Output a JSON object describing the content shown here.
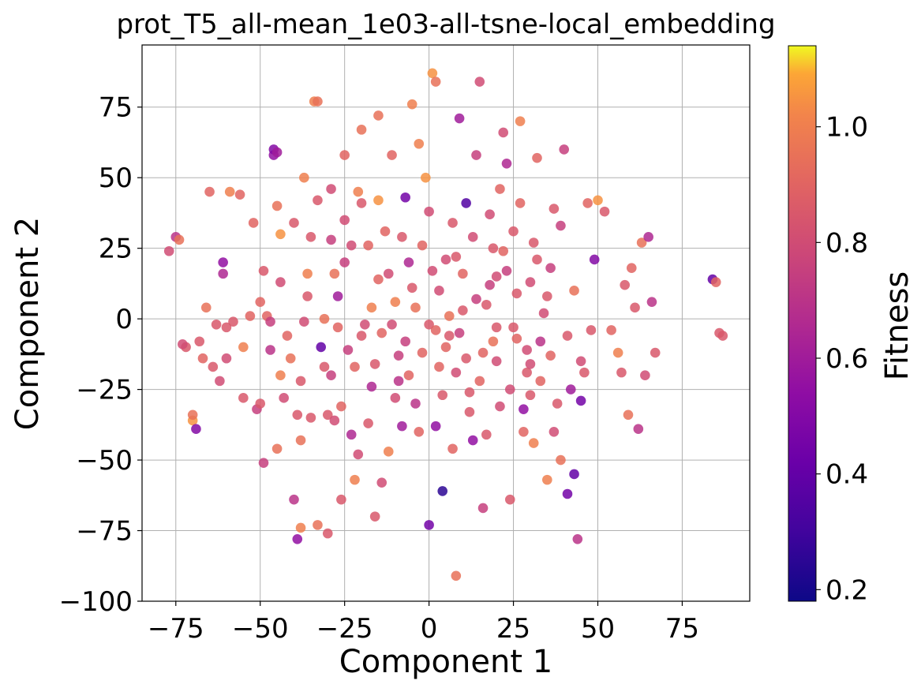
{
  "chart_data": {
    "type": "scatter",
    "title": "prot_T5_all-mean_1e03-all-tsne-local_embedding",
    "xlabel": "Component 1",
    "ylabel": "Component 2",
    "xlim": [
      -85,
      95
    ],
    "ylim": [
      -100,
      97
    ],
    "xticks": [
      -75,
      -50,
      -25,
      0,
      25,
      50,
      75
    ],
    "yticks": [
      -100,
      -75,
      -50,
      -25,
      0,
      25,
      50,
      75
    ],
    "xtick_labels": [
      "−75",
      "−50",
      "−25",
      "0",
      "25",
      "50",
      "75"
    ],
    "ytick_labels": [
      "−100",
      "−75",
      "−50",
      "−25",
      "0",
      "25",
      "50",
      "75"
    ],
    "grid": true,
    "colorbar": {
      "label": "Fitness",
      "colormap": "plasma",
      "range": [
        0.18,
        1.14
      ],
      "ticks": [
        0.2,
        0.4,
        0.6,
        0.8,
        1.0
      ],
      "tick_labels": [
        "0.2",
        "0.4",
        "0.6",
        "0.8",
        "1.0"
      ]
    },
    "points": [
      [
        -77,
        24,
        0.8
      ],
      [
        -75,
        29,
        0.7
      ],
      [
        -74,
        28,
        0.95
      ],
      [
        -72,
        -10,
        0.85
      ],
      [
        -70,
        -36,
        1.05
      ],
      [
        -69,
        -39,
        0.5
      ],
      [
        -70,
        -34,
        0.95
      ],
      [
        -68,
        -8,
        0.85
      ],
      [
        -67,
        -14,
        0.9
      ],
      [
        -66,
        4,
        0.95
      ],
      [
        -65,
        45,
        0.9
      ],
      [
        -64,
        -17,
        0.85
      ],
      [
        -62,
        -22,
        0.8
      ],
      [
        -61,
        16,
        0.65
      ],
      [
        -61,
        20,
        0.55
      ],
      [
        -60,
        -3,
        0.85
      ],
      [
        -59,
        45,
        1.0
      ],
      [
        -58,
        -1,
        0.85
      ],
      [
        -56,
        44,
        0.9
      ],
      [
        -55,
        -10,
        1.0
      ],
      [
        -52,
        34,
        0.9
      ],
      [
        -51,
        -32,
        0.75
      ],
      [
        -50,
        -30,
        0.85
      ],
      [
        -49,
        17,
        0.85
      ],
      [
        -49,
        -51,
        0.75
      ],
      [
        -48,
        1,
        0.9
      ],
      [
        -47,
        -11,
        0.7
      ],
      [
        -46,
        58,
        0.55
      ],
      [
        -46,
        60,
        0.5
      ],
      [
        -45,
        59,
        0.6
      ],
      [
        -45,
        40,
        0.95
      ],
      [
        -44,
        30,
        1.05
      ],
      [
        -44,
        -20,
        1.0
      ],
      [
        -43,
        -28,
        0.8
      ],
      [
        -41,
        -14,
        0.95
      ],
      [
        -40,
        -64,
        0.7
      ],
      [
        -39,
        -78,
        0.55
      ],
      [
        -38,
        -74,
        1.0
      ],
      [
        -38,
        -43,
        0.95
      ],
      [
        -37,
        50,
        1.0
      ],
      [
        -36,
        16,
        1.0
      ],
      [
        -36,
        8,
        0.85
      ],
      [
        -35,
        -35,
        0.85
      ],
      [
        -34,
        77,
        1.0
      ],
      [
        -33,
        77,
        0.95
      ],
      [
        -32,
        -10,
        0.4
      ],
      [
        -31,
        -17,
        0.85
      ],
      [
        -30,
        -34,
        0.85
      ],
      [
        -30,
        -76,
        0.85
      ],
      [
        -29,
        46,
        0.8
      ],
      [
        -29,
        28,
        0.75
      ],
      [
        -28,
        16,
        0.95
      ],
      [
        -27,
        -3,
        0.9
      ],
      [
        -26,
        -64,
        0.85
      ],
      [
        -25,
        58,
        0.9
      ],
      [
        -25,
        20,
        0.75
      ],
      [
        -24,
        -11,
        0.75
      ],
      [
        -23,
        -41,
        0.65
      ],
      [
        -22,
        -57,
        1.0
      ],
      [
        -21,
        45,
        1.0
      ],
      [
        -20,
        67,
        0.95
      ],
      [
        -20,
        41,
        0.85
      ],
      [
        -19,
        -2,
        0.8
      ],
      [
        -18,
        26,
        0.9
      ],
      [
        -17,
        -24,
        0.65
      ],
      [
        -17,
        4,
        1.0
      ],
      [
        -16,
        -70,
        0.85
      ],
      [
        -15,
        72,
        0.95
      ],
      [
        -15,
        42,
        1.05
      ],
      [
        -14,
        -58,
        0.8
      ],
      [
        -13,
        31,
        0.9
      ],
      [
        -12,
        -47,
        1.0
      ],
      [
        -11,
        58,
        0.9
      ],
      [
        -10,
        -28,
        0.8
      ],
      [
        -9,
        -13,
        0.75
      ],
      [
        -8,
        -38,
        0.6
      ],
      [
        -7,
        43,
        0.45
      ],
      [
        -6,
        20,
        0.65
      ],
      [
        -5,
        76,
        1.0
      ],
      [
        -4,
        -30,
        0.7
      ],
      [
        -3,
        62,
        1.0
      ],
      [
        -2,
        -12,
        0.9
      ],
      [
        -1,
        50,
        1.05
      ],
      [
        0,
        38,
        0.8
      ],
      [
        0,
        -73,
        0.45
      ],
      [
        1,
        87,
        1.05
      ],
      [
        2,
        84,
        0.95
      ],
      [
        2,
        -38,
        0.55
      ],
      [
        3,
        -17,
        0.9
      ],
      [
        4,
        -61,
        0.25
      ],
      [
        5,
        21,
        0.8
      ],
      [
        6,
        -6,
        0.85
      ],
      [
        7,
        -46,
        0.9
      ],
      [
        8,
        -91,
        0.95
      ],
      [
        9,
        71,
        0.6
      ],
      [
        10,
        3,
        0.85
      ],
      [
        11,
        41,
        0.35
      ],
      [
        12,
        -26,
        0.85
      ],
      [
        13,
        -43,
        0.55
      ],
      [
        14,
        58,
        0.75
      ],
      [
        15,
        84,
        0.8
      ],
      [
        16,
        -67,
        0.75
      ],
      [
        17,
        -41,
        0.85
      ],
      [
        18,
        12,
        0.75
      ],
      [
        19,
        25,
        0.85
      ],
      [
        20,
        -15,
        0.8
      ],
      [
        21,
        46,
        0.9
      ],
      [
        22,
        66,
        0.8
      ],
      [
        23,
        55,
        0.65
      ],
      [
        24,
        -64,
        0.85
      ],
      [
        25,
        31,
        0.85
      ],
      [
        26,
        -7,
        0.9
      ],
      [
        27,
        70,
        1.0
      ],
      [
        28,
        -32,
        0.55
      ],
      [
        29,
        -19,
        0.85
      ],
      [
        30,
        13,
        0.8
      ],
      [
        31,
        -44,
        1.0
      ],
      [
        32,
        57,
        0.9
      ],
      [
        33,
        -8,
        0.7
      ],
      [
        34,
        2,
        0.8
      ],
      [
        35,
        -57,
        1.0
      ],
      [
        36,
        18,
        0.75
      ],
      [
        37,
        39,
        0.85
      ],
      [
        38,
        -30,
        0.85
      ],
      [
        39,
        -50,
        0.95
      ],
      [
        40,
        60,
        0.75
      ],
      [
        41,
        -62,
        0.45
      ],
      [
        42,
        -25,
        0.6
      ],
      [
        43,
        -55,
        0.4
      ],
      [
        44,
        -78,
        0.7
      ],
      [
        45,
        -29,
        0.45
      ],
      [
        46,
        -19,
        0.85
      ],
      [
        47,
        41,
        0.9
      ],
      [
        48,
        -4,
        0.85
      ],
      [
        49,
        21,
        0.5
      ],
      [
        50,
        42,
        1.05
      ],
      [
        52,
        38,
        0.85
      ],
      [
        54,
        -4,
        0.9
      ],
      [
        56,
        -12,
        1.0
      ],
      [
        57,
        -19,
        0.85
      ],
      [
        58,
        12,
        0.85
      ],
      [
        59,
        -34,
        0.95
      ],
      [
        60,
        18,
        0.9
      ],
      [
        61,
        4,
        0.85
      ],
      [
        62,
        -39,
        0.7
      ],
      [
        63,
        27,
        0.95
      ],
      [
        64,
        -20,
        0.8
      ],
      [
        65,
        29,
        0.65
      ],
      [
        66,
        6,
        0.7
      ],
      [
        67,
        -12,
        0.85
      ],
      [
        84,
        14,
        0.4
      ],
      [
        85,
        13,
        0.9
      ],
      [
        86,
        -5,
        0.85
      ],
      [
        87,
        -6,
        0.85
      ],
      [
        -73,
        -9,
        0.8
      ],
      [
        -63,
        -2,
        0.85
      ],
      [
        -53,
        1,
        0.9
      ],
      [
        -40,
        34,
        0.85
      ],
      [
        -37,
        -1,
        0.8
      ],
      [
        -33,
        42,
        0.85
      ],
      [
        -27,
        8,
        0.6
      ],
      [
        -23,
        26,
        0.8
      ],
      [
        -21,
        -48,
        0.8
      ],
      [
        -18,
        -37,
        0.85
      ],
      [
        -14,
        -5,
        0.9
      ],
      [
        -12,
        16,
        0.8
      ],
      [
        -10,
        6,
        1.0
      ],
      [
        -8,
        29,
        0.85
      ],
      [
        -6,
        -20,
        0.9
      ],
      [
        -4,
        4,
        0.95
      ],
      [
        -2,
        26,
        0.9
      ],
      [
        0,
        -2,
        0.85
      ],
      [
        3,
        10,
        0.8
      ],
      [
        5,
        -10,
        0.9
      ],
      [
        7,
        34,
        0.85
      ],
      [
        9,
        -5,
        0.75
      ],
      [
        11,
        -14,
        0.85
      ],
      [
        13,
        29,
        0.8
      ],
      [
        15,
        -22,
        0.9
      ],
      [
        17,
        5,
        0.85
      ],
      [
        19,
        -8,
        0.95
      ],
      [
        21,
        -31,
        0.8
      ],
      [
        23,
        17,
        0.75
      ],
      [
        25,
        -3,
        0.85
      ],
      [
        27,
        41,
        0.9
      ],
      [
        29,
        -11,
        0.8
      ],
      [
        31,
        27,
        0.85
      ],
      [
        33,
        -22,
        0.9
      ],
      [
        35,
        8,
        0.85
      ],
      [
        37,
        -40,
        0.8
      ],
      [
        39,
        33,
        0.75
      ],
      [
        41,
        -6,
        0.85
      ],
      [
        43,
        10,
        0.95
      ],
      [
        45,
        -15,
        0.8
      ],
      [
        -31,
        0,
        0.95
      ],
      [
        -35,
        29,
        0.85
      ],
      [
        -44,
        13,
        0.8
      ],
      [
        -47,
        -1,
        0.75
      ],
      [
        -42,
        -6,
        0.9
      ],
      [
        -39,
        -34,
        0.85
      ],
      [
        -29,
        -20,
        0.75
      ],
      [
        -26,
        -31,
        0.9
      ],
      [
        -20,
        -6,
        0.85
      ],
      [
        -15,
        14,
        0.9
      ],
      [
        -11,
        -2,
        0.8
      ],
      [
        -9,
        -22,
        0.7
      ],
      [
        -5,
        11,
        0.85
      ],
      [
        -3,
        -40,
        0.9
      ],
      [
        1,
        17,
        0.8
      ],
      [
        4,
        -27,
        0.85
      ],
      [
        6,
        1,
        0.95
      ],
      [
        8,
        -19,
        0.8
      ],
      [
        10,
        16,
        0.9
      ],
      [
        12,
        -33,
        0.85
      ],
      [
        14,
        7,
        0.75
      ],
      [
        16,
        -12,
        0.9
      ],
      [
        18,
        37,
        0.8
      ],
      [
        20,
        -3,
        0.85
      ],
      [
        22,
        24,
        0.9
      ],
      [
        24,
        -25,
        0.8
      ],
      [
        26,
        9,
        0.85
      ],
      [
        28,
        -40,
        0.9
      ],
      [
        30,
        -16,
        0.8
      ],
      [
        32,
        21,
        0.85
      ],
      [
        -25,
        35,
        0.8
      ],
      [
        -16,
        -16,
        0.85
      ],
      [
        -7,
        -8,
        0.75
      ],
      [
        2,
        -4,
        0.9
      ],
      [
        8,
        22,
        0.85
      ],
      [
        20,
        15,
        0.8
      ],
      [
        30,
        -27,
        0.85
      ],
      [
        36,
        -13,
        0.9
      ],
      [
        -60,
        -14,
        0.8
      ],
      [
        -55,
        -28,
        0.85
      ],
      [
        -50,
        6,
        0.9
      ],
      [
        -45,
        -46,
        0.95
      ],
      [
        -38,
        -22,
        0.85
      ],
      [
        -33,
        -73,
        0.95
      ],
      [
        -28,
        -36,
        0.8
      ],
      [
        -22,
        -17,
        0.9
      ]
    ]
  }
}
